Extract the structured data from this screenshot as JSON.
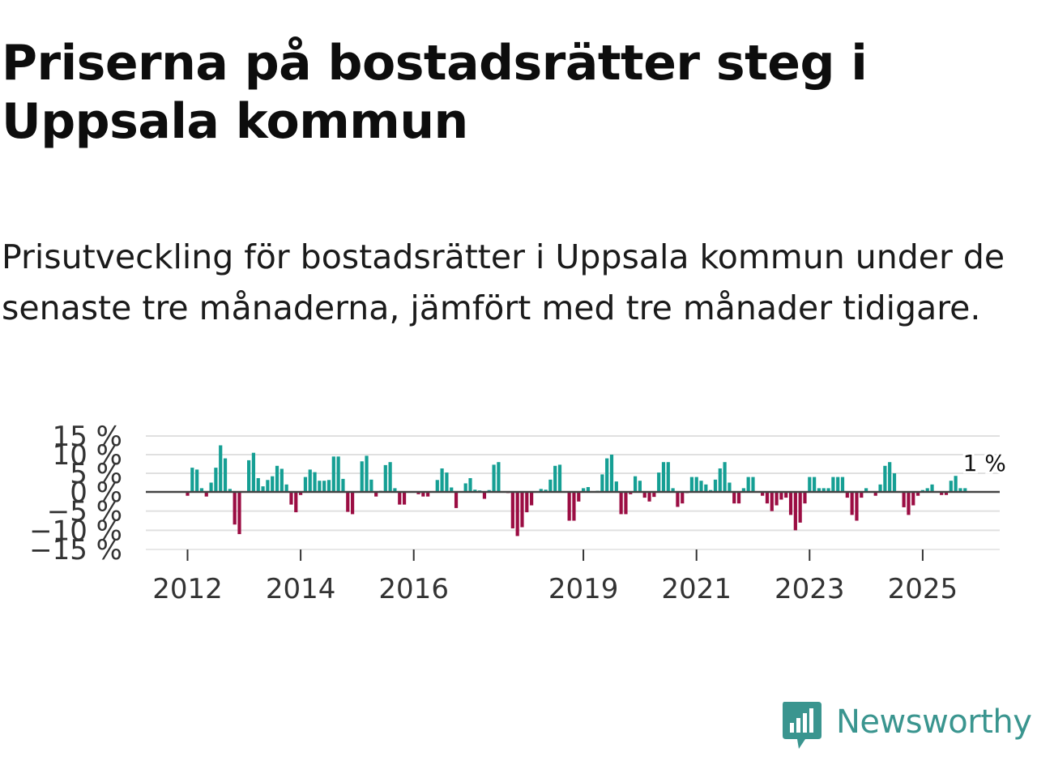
{
  "title": "Priserna på bostadsrätter steg i Uppsala kommun",
  "subtitle": "Prisutveckling för bostadsrätter i Uppsala kommun under de senaste tre månaderna, jämfört med tre månader tidigare.",
  "logo": {
    "text": "Newsworthy",
    "icon": "bar-chart-speech-bubble-icon"
  },
  "colors": {
    "positive": "#159f94",
    "negative": "#9b0d43",
    "grid": "#e0e0e0",
    "zero": "#444444",
    "logo": "#3a958f"
  },
  "chart_data": {
    "type": "bar",
    "title": "",
    "xlabel": "",
    "ylabel": "",
    "ylim": [
      -15,
      15
    ],
    "yticks": [
      15,
      10,
      5,
      0,
      -5,
      -10,
      -15
    ],
    "ytick_labels": [
      "15 %",
      "10 %",
      "5 %",
      "0 %",
      "−5 %",
      "−10 %",
      "−15 %"
    ],
    "xticks": [
      2012,
      2014,
      2016,
      2019,
      2021,
      2023,
      2025
    ],
    "xtick_labels": [
      "2012",
      "2014",
      "2016",
      "2019",
      "2021",
      "2023",
      "2025"
    ],
    "start": [
      2012,
      1
    ],
    "x_unit": "month",
    "values": [
      -1,
      6.5,
      6,
      1,
      -1.2,
      2.5,
      6.5,
      12.5,
      9,
      0.8,
      -8.5,
      -11,
      0.2,
      8.5,
      10.5,
      3.7,
      1.5,
      3.2,
      4.2,
      7,
      6.2,
      2,
      -3.3,
      -5.3,
      -0.8,
      4,
      6,
      5.3,
      3,
      3,
      3.2,
      9.5,
      9.5,
      3.5,
      -5.2,
      -5.8,
      0,
      8.2,
      9.7,
      3.3,
      -1.2,
      0.3,
      7.2,
      8,
      1,
      -3.3,
      -3.3,
      0,
      0.2,
      -0.6,
      -1.2,
      -1.2,
      -0.2,
      3.2,
      6.3,
      5.2,
      1.2,
      -4.2,
      0.2,
      2.3,
      3.7,
      0.6,
      0.4,
      -1.8,
      0.5,
      7.3,
      8,
      0.2,
      -0.3,
      -9.5,
      -11.5,
      -9.2,
      -5.3,
      -3.5,
      0,
      0.8,
      0.6,
      3.3,
      7,
      7.3,
      0,
      -7.5,
      -7.5,
      -2.5,
      1,
      1.3,
      0,
      0.3,
      4.7,
      9,
      10,
      2.8,
      -5.8,
      -5.8,
      -0.6,
      4.2,
      3,
      -1.5,
      -2.5,
      -1.3,
      5.2,
      8,
      8,
      1,
      -3.9,
      -3,
      -0.3,
      4,
      4,
      3,
      2,
      0.5,
      3.3,
      6.3,
      8,
      2.5,
      -3,
      -3,
      1,
      4,
      4,
      0,
      -1,
      -3,
      -5,
      -3.5,
      -2,
      -1.5,
      -6,
      -10,
      -8,
      -3,
      4,
      4,
      1,
      1,
      1,
      4,
      4,
      4,
      -1.5,
      -6,
      -7.5,
      -1.5,
      1,
      0,
      -1,
      2,
      7,
      8,
      5,
      0.2,
      -4,
      -6,
      -3.5,
      -1,
      0.5,
      1,
      2,
      0.2,
      -0.8,
      -0.8,
      3,
      4.3,
      1,
      1
    ],
    "annotation": {
      "text": "1 %",
      "target": "last"
    }
  }
}
